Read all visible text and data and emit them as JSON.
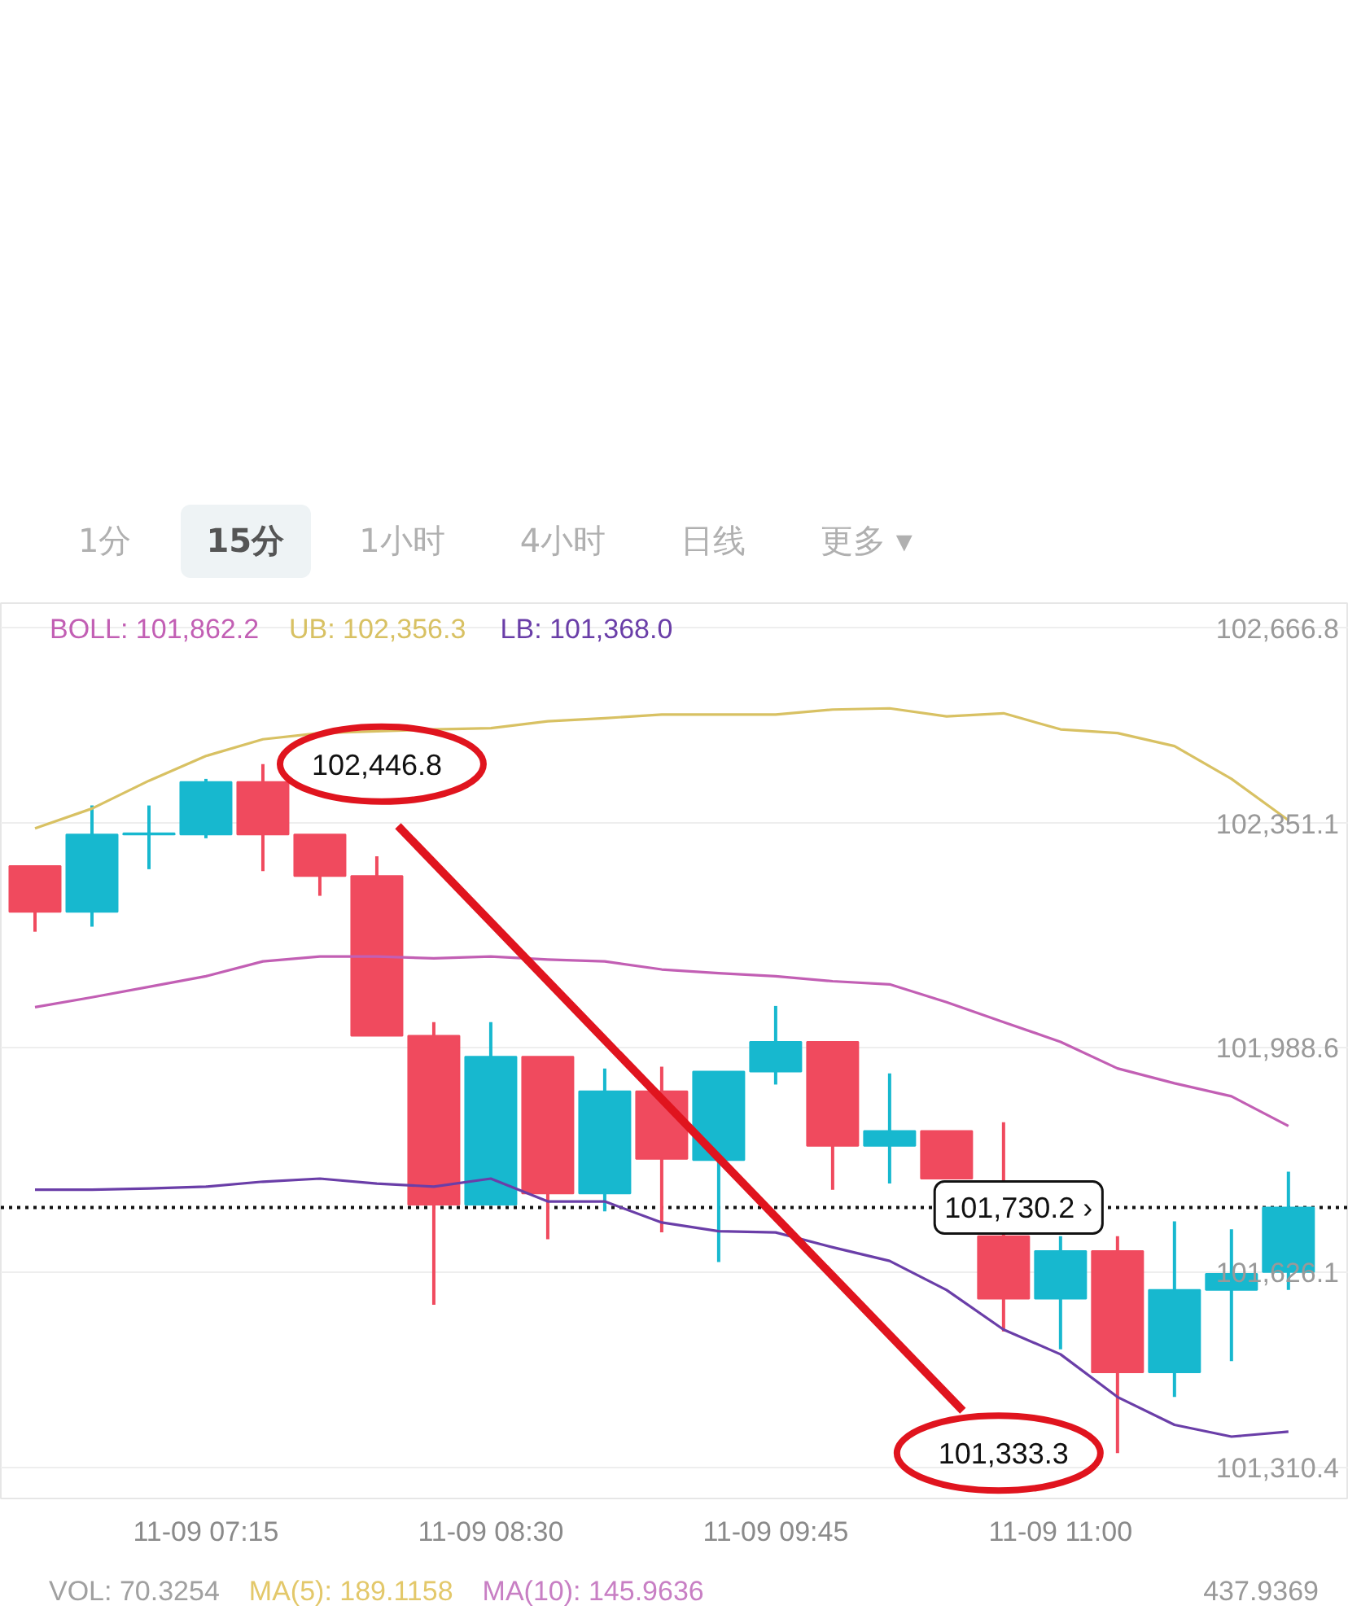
{
  "chart_data": [
    {
      "type": "other",
      "annotations": [
        "1分",
        "15分",
        "1小时",
        "4小时",
        "日线",
        "更多 ▾"
      ]
    },
    {
      "type": "candlestick",
      "categories": [
        null,
        null,
        null,
        "11-09 07:15",
        null,
        null,
        null,
        null,
        "11-09 08:30",
        null,
        null,
        null,
        null,
        "11-09 09:45",
        null,
        null,
        null,
        null,
        "11-09 11:00",
        null,
        null,
        null,
        null
      ],
      "ohlc": [
        [
          102282,
          102282,
          102176,
          102208
        ],
        [
          102208,
          102380,
          102184,
          102333
        ],
        [
          102333,
          102380,
          102277,
          102335
        ],
        [
          102333,
          102423,
          102327,
          102418
        ],
        [
          102418,
          102446.8,
          102274,
          102333
        ],
        [
          102333,
          102333,
          102234,
          102266
        ],
        [
          102266,
          102298,
          102008,
          102008
        ],
        [
          102008,
          102030,
          101573,
          101735
        ],
        [
          101735,
          102030,
          101735,
          101974
        ],
        [
          101974,
          101974,
          101679,
          101753
        ],
        [
          101753,
          101955,
          101724,
          101918
        ],
        [
          101918,
          101958,
          101690,
          101809
        ],
        [
          101807,
          101950,
          101642,
          101950
        ],
        [
          101950,
          102056,
          101929,
          101998
        ],
        [
          101998,
          101998,
          101759,
          101830
        ],
        [
          101830,
          101947,
          101769,
          101854
        ],
        [
          101854,
          101854,
          101777,
          101777
        ],
        [
          101684,
          101868,
          101530,
          101583
        ],
        [
          101583,
          101684,
          101501,
          101660
        ],
        [
          101660,
          101684,
          101333.3,
          101464
        ],
        [
          101464,
          101708,
          101424,
          101597
        ],
        [
          101597,
          101695,
          101482,
          101623
        ],
        [
          101626,
          101788,
          101597,
          101730.2
        ]
      ],
      "colors": [
        "#f04a5e",
        "#17b8cf",
        "#17b8cf",
        "#17b8cf",
        "#f04a5e",
        "#f04a5e",
        "#f04a5e",
        "#f04a5e",
        "#17b8cf",
        "#f04a5e",
        "#17b8cf",
        "#f04a5e",
        "#17b8cf",
        "#17b8cf",
        "#f04a5e",
        "#17b8cf",
        "#f04a5e",
        "#f04a5e",
        "#17b8cf",
        "#f04a5e",
        "#17b8cf",
        "#17b8cf",
        "#17b8cf"
      ],
      "series": [
        {
          "name": "BOLL: 101,862.2",
          "color": "#c25fb4",
          "type": "line",
          "values": [
            102054,
            102070,
            102087,
            102104,
            102128,
            102136,
            102136,
            102133,
            102136,
            102131,
            102128,
            102115,
            102109,
            102104,
            102096,
            102091,
            102062,
            102030,
            101998,
            101955,
            101931,
            101910,
            101862
          ]
        },
        {
          "name": "UB: 102,356.3",
          "color": "#d8c163",
          "type": "line",
          "values": [
            102343,
            102375,
            102420,
            102460,
            102487,
            102497,
            102500,
            102503,
            102505,
            102516,
            102521,
            102527,
            102527,
            102527,
            102535,
            102537,
            102524,
            102529,
            102503,
            102497,
            102476,
            102423,
            102356
          ]
        },
        {
          "name": "LB: 101,368.0",
          "color": "#6a3ea8",
          "type": "line",
          "values": [
            101759,
            101759,
            101761,
            101764,
            101772,
            101777,
            101769,
            101764,
            101777,
            101740,
            101740,
            101706,
            101692,
            101690,
            101666,
            101644,
            101597,
            101533,
            101493,
            101424,
            101379,
            101360,
            101368
          ]
        }
      ],
      "ylim": [
        101260,
        102707
      ],
      "yticks": [
        {
          "value": 102666.8,
          "label": "102,666.8"
        },
        {
          "value": 102351.1,
          "label": "102,351.1"
        },
        {
          "value": 101988.6,
          "label": "101,988.6"
        },
        {
          "value": 101626.1,
          "label": "101,626.1"
        },
        {
          "value": 101310.4,
          "label": "101,310.4"
        }
      ],
      "grid": "y",
      "legend": "top left",
      "ref_lines": [
        {
          "axis": "y",
          "value": 101730.2,
          "label": "101,730.2 ›",
          "color": "#111111",
          "line_style": "dotted"
        }
      ],
      "annotations": [
        "102,446.8",
        "101,333.3"
      ]
    },
    {
      "type": "other",
      "annotations": [
        "VOL: 70.3254",
        "MA(5): 189.1158",
        "MA(10): 145.9636",
        "437.9369"
      ]
    }
  ]
}
